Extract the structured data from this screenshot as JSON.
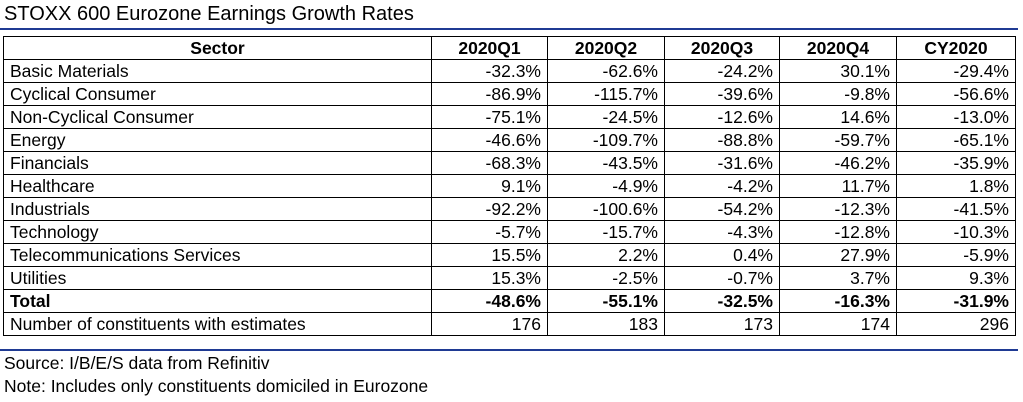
{
  "title": "STOXX 600 Eurozone Earnings Growth Rates",
  "source": "Source: I/B/E/S data from Refinitiv",
  "note": "Note: Includes only constituents domiciled in Eurozone",
  "chart_data": {
    "type": "table",
    "title": "STOXX 600 Eurozone Earnings Growth Rates",
    "columns": [
      "Sector",
      "2020Q1",
      "2020Q2",
      "2020Q3",
      "2020Q4",
      "CY2020"
    ],
    "rows": [
      [
        "Basic Materials",
        "-32.3%",
        "-62.6%",
        "-24.2%",
        "30.1%",
        "-29.4%"
      ],
      [
        "Cyclical Consumer",
        "-86.9%",
        "-115.7%",
        "-39.6%",
        "-9.8%",
        "-56.6%"
      ],
      [
        "Non-Cyclical Consumer",
        "-75.1%",
        "-24.5%",
        "-12.6%",
        "14.6%",
        "-13.0%"
      ],
      [
        "Energy",
        "-46.6%",
        "-109.7%",
        "-88.8%",
        "-59.7%",
        "-65.1%"
      ],
      [
        "Financials",
        "-68.3%",
        "-43.5%",
        "-31.6%",
        "-46.2%",
        "-35.9%"
      ],
      [
        "Healthcare",
        "9.1%",
        "-4.9%",
        "-4.2%",
        "11.7%",
        "1.8%"
      ],
      [
        "Industrials",
        "-92.2%",
        "-100.6%",
        "-54.2%",
        "-12.3%",
        "-41.5%"
      ],
      [
        "Technology",
        "-5.7%",
        "-15.7%",
        "-4.3%",
        "-12.8%",
        "-10.3%"
      ],
      [
        "Telecommunications Services",
        "15.5%",
        "2.2%",
        "0.4%",
        "27.9%",
        "-5.9%"
      ],
      [
        "Utilities",
        "15.3%",
        "-2.5%",
        "-0.7%",
        "3.7%",
        "9.3%"
      ]
    ],
    "total": [
      "Total",
      "-48.6%",
      "-55.1%",
      "-32.5%",
      "-16.3%",
      "-31.9%"
    ],
    "constituents": [
      "Number of constituents with estimates",
      "176",
      "183",
      "173",
      "174",
      "296"
    ]
  }
}
